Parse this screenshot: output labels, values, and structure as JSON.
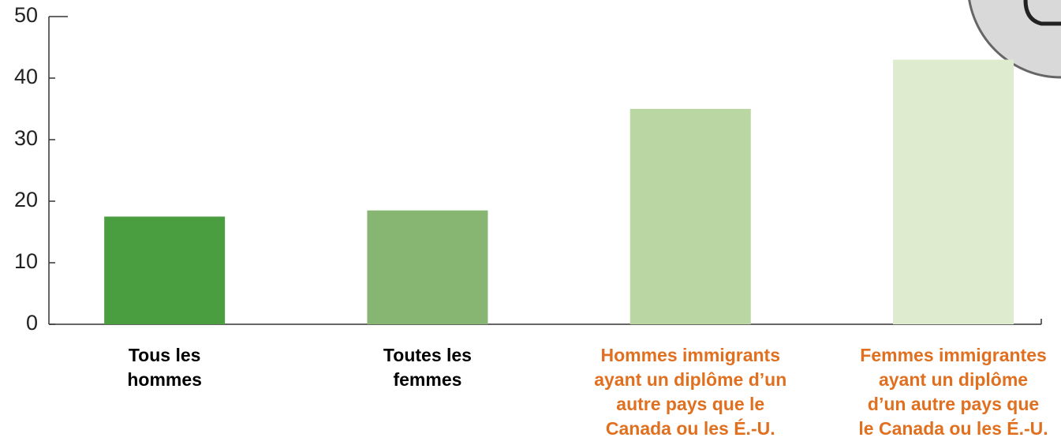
{
  "chart_data": {
    "type": "bar",
    "categories": [
      [
        "Tous les",
        "hommes"
      ],
      [
        "Toutes les",
        "femmes"
      ],
      [
        "Hommes immigrants",
        "ayant un diplôme d’un",
        "autre pays que le",
        "Canada ou les É.-U."
      ],
      [
        "Femmes immigrantes",
        "ayant un diplôme",
        "d’un autre pays que",
        "le Canada ou les É.-U."
      ]
    ],
    "values": [
      17.5,
      18.5,
      35,
      43
    ],
    "colors": [
      "#4a9e3f",
      "#87b673",
      "#b9d6a3",
      "#dfebcf"
    ],
    "label_colors": [
      "#000000",
      "#000000",
      "#e0701f",
      "#e0701f"
    ],
    "ylim": [
      0,
      50
    ],
    "yticks": [
      0,
      10,
      20,
      30,
      40,
      50
    ]
  }
}
